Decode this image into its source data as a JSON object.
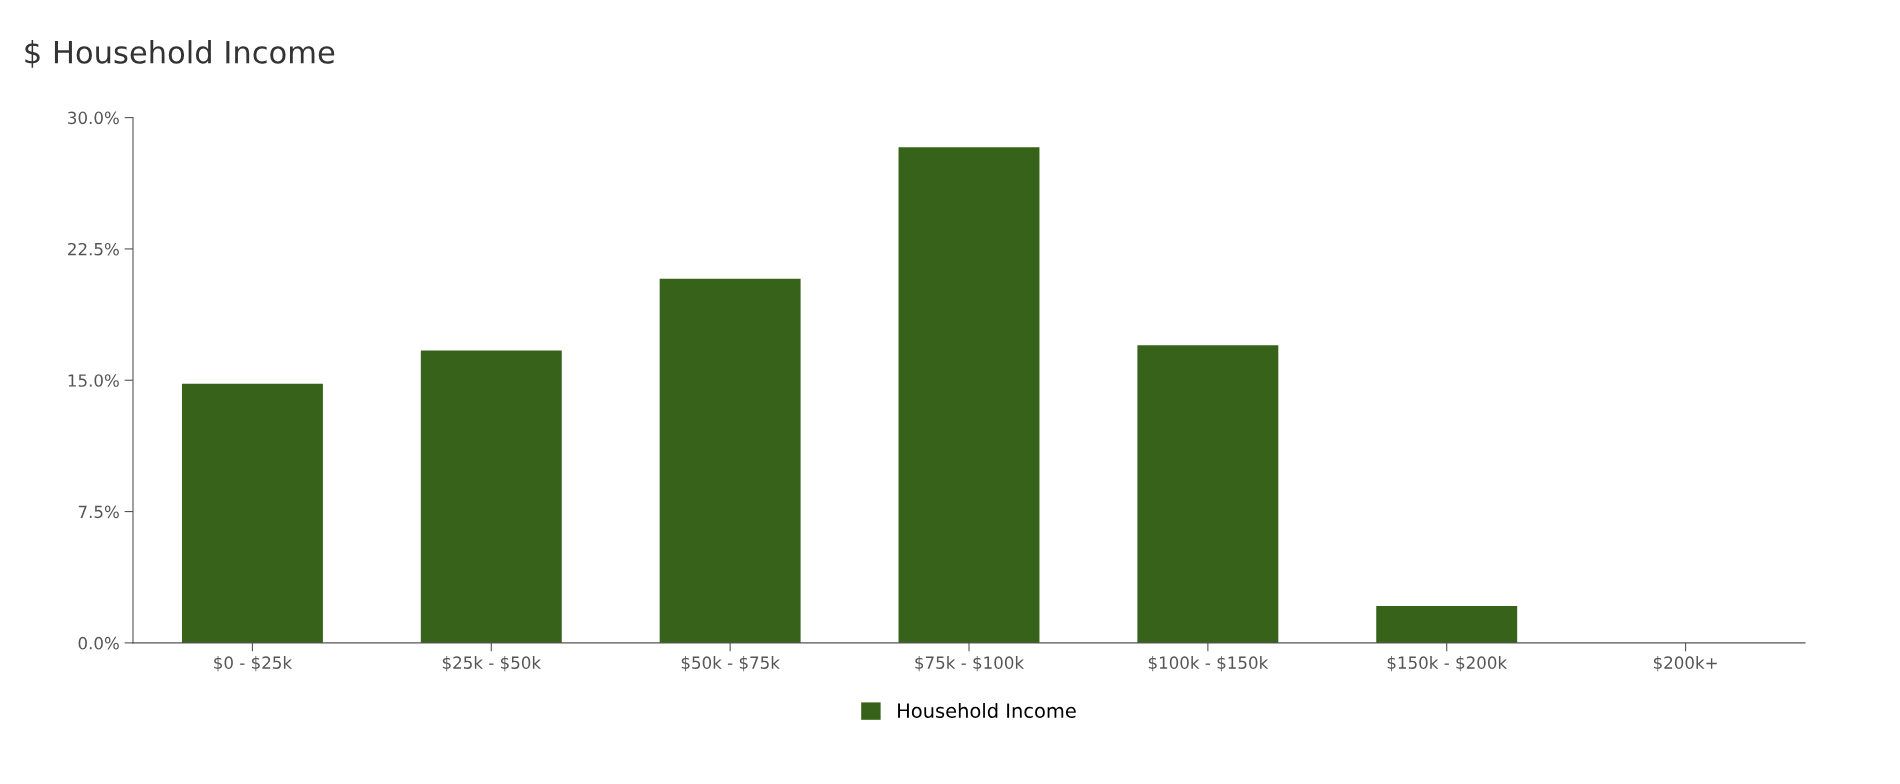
{
  "chart_data": {
    "type": "bar",
    "title": "$ Household Income",
    "categories": [
      "$0 - $25k",
      "$25k - $50k",
      "$50k - $75k",
      "$75k - $100k",
      "$100k - $150k",
      "$150k - $200k",
      "$200k+"
    ],
    "series": [
      {
        "name": "Household Income",
        "color": "#376219",
        "values": [
          14.8,
          16.7,
          20.8,
          28.3,
          17.0,
          2.1,
          0
        ]
      }
    ],
    "ylim": [
      0,
      30
    ],
    "yticks": [
      {
        "value": 0,
        "label": "0.0%"
      },
      {
        "value": 7.5,
        "label": "7.5%"
      },
      {
        "value": 15,
        "label": "15.0%"
      },
      {
        "value": 22.5,
        "label": "22.5%"
      },
      {
        "value": 30,
        "label": "30.0%"
      }
    ],
    "grid": false,
    "legend": "bottom"
  }
}
